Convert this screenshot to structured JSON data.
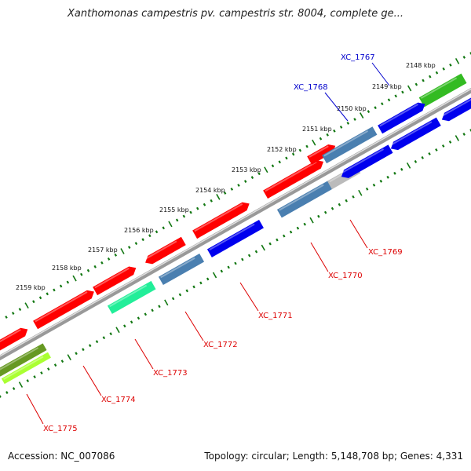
{
  "title": "Xanthomonas campestris pv. campestris str. 8004, complete ge...",
  "footer": {
    "accession": "Accession: NC_007086",
    "summary": "Topology: circular; Length: 5,148,708 bp; Genes: 4,331"
  },
  "ticks": [
    "2148 kbp",
    "2149 kbp",
    "2150 kbp",
    "2151 kbp",
    "2152 kbp",
    "2153 kbp",
    "2154 kbp",
    "2155 kbp",
    "2156 kbp",
    "2157 kbp",
    "2158 kbp",
    "2159 kbp"
  ],
  "genes_top": [
    "XC_1767",
    "XC_1768"
  ],
  "genes_bottom": [
    "XC_1769",
    "XC_1770",
    "XC_1771",
    "XC_1772",
    "XC_1773",
    "XC_1774",
    "XC_1775"
  ],
  "colors": {
    "red": "#ff0000",
    "blue": "#0000ee",
    "steelblue": "#4a7fb0",
    "green": "#33bb22",
    "teal": "#22ee99",
    "olive": "#669922",
    "lime": "#aaff33",
    "grey": "#bbbbbb",
    "axis": "#888888",
    "tick": "#117711",
    "top_label": "#0000cc",
    "bottom_label": "#dd0000"
  }
}
